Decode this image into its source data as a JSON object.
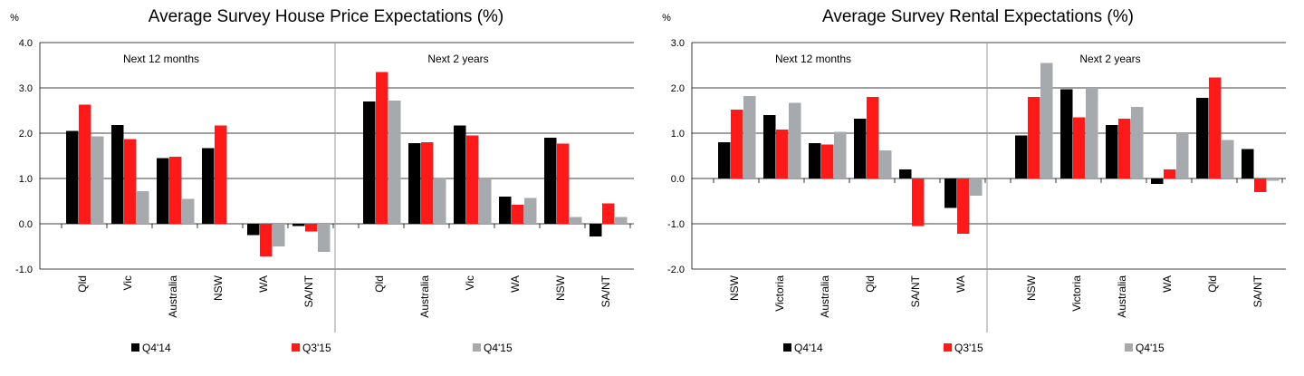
{
  "legend": {
    "series": [
      {
        "name": "Q4'14",
        "color": "#000000"
      },
      {
        "name": "Q3'15",
        "color": "#ff1a1a"
      },
      {
        "name": "Q4'15",
        "color": "#a6a9ad"
      }
    ]
  },
  "chart_data": [
    {
      "type": "bar",
      "title": "Average Survey House Price Expectations (%)",
      "unit": "%",
      "ylim": [
        -1.0,
        4.0
      ],
      "yticks": [
        "4.0",
        "3.0",
        "2.0",
        "1.0",
        "0.0",
        "-1.0"
      ],
      "grid": true,
      "legend_position": "bottom",
      "panels": [
        {
          "label": "Next 12 months",
          "categories": [
            "Qld",
            "Vic",
            "Australia",
            "NSW",
            "WA",
            "SA/NT"
          ],
          "series": [
            {
              "name": "Q4'14",
              "values": [
                2.05,
                2.18,
                1.45,
                1.67,
                -0.25,
                -0.05
              ]
            },
            {
              "name": "Q3'15",
              "values": [
                2.63,
                1.87,
                1.48,
                2.17,
                -0.72,
                -0.17
              ]
            },
            {
              "name": "Q4'15",
              "values": [
                1.93,
                0.72,
                0.55,
                0.0,
                -0.5,
                -0.62
              ]
            }
          ]
        },
        {
          "label": "Next 2 years",
          "categories": [
            "Qld",
            "Australia",
            "Vic",
            "WA",
            "NSW",
            "SA/NT"
          ],
          "series": [
            {
              "name": "Q4'14",
              "values": [
                2.7,
                1.78,
                2.17,
                0.6,
                1.9,
                -0.28
              ]
            },
            {
              "name": "Q3'15",
              "values": [
                3.35,
                1.8,
                1.95,
                0.42,
                1.77,
                0.45
              ]
            },
            {
              "name": "Q4'15",
              "values": [
                2.72,
                1.02,
                1.0,
                0.57,
                0.15,
                0.15
              ]
            }
          ]
        }
      ]
    },
    {
      "type": "bar",
      "title": "Average Survey Rental Expectations (%)",
      "unit": "%",
      "ylim": [
        -2.0,
        3.0
      ],
      "yticks": [
        "3.0",
        "2.0",
        "1.0",
        "0.0",
        "-1.0",
        "-2.0"
      ],
      "grid": true,
      "legend_position": "bottom",
      "panels": [
        {
          "label": "Next 12 months",
          "categories": [
            "NSW",
            "Victoria",
            "Australia",
            "Qld",
            "SA/NT",
            "WA"
          ],
          "series": [
            {
              "name": "Q4'14",
              "values": [
                0.8,
                1.4,
                0.78,
                1.32,
                0.2,
                -0.65
              ]
            },
            {
              "name": "Q3'15",
              "values": [
                1.52,
                1.08,
                0.75,
                1.8,
                -1.05,
                -1.22
              ]
            },
            {
              "name": "Q4'15",
              "values": [
                1.82,
                1.67,
                1.03,
                0.62,
                0.0,
                -0.38
              ]
            }
          ]
        },
        {
          "label": "Next 2 years",
          "categories": [
            "NSW",
            "Victoria",
            "Australia",
            "WA",
            "Qld",
            "SA/NT"
          ],
          "series": [
            {
              "name": "Q4'14",
              "values": [
                0.95,
                1.97,
                1.18,
                -0.12,
                1.78,
                0.65
              ]
            },
            {
              "name": "Q3'15",
              "values": [
                1.8,
                1.35,
                1.32,
                0.2,
                2.23,
                -0.3
              ]
            },
            {
              "name": "Q4'15",
              "values": [
                2.55,
                2.0,
                1.58,
                1.0,
                0.85,
                -0.05
              ]
            }
          ]
        }
      ]
    }
  ]
}
